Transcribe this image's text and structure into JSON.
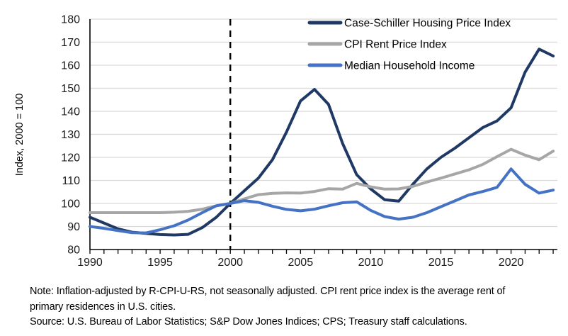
{
  "chart_data": {
    "type": "line",
    "title": "",
    "xlabel": "",
    "ylabel": "Index, 2000 = 100",
    "ylim": [
      80,
      180
    ],
    "ytick_step": 10,
    "x": [
      1990,
      1991,
      1992,
      1993,
      1994,
      1995,
      1996,
      1997,
      1998,
      1999,
      2000,
      2001,
      2002,
      2003,
      2004,
      2005,
      2006,
      2007,
      2008,
      2009,
      2010,
      2011,
      2012,
      2013,
      2014,
      2015,
      2016,
      2017,
      2018,
      2019,
      2020,
      2021,
      2022,
      2023
    ],
    "xticks_labeled": [
      1990,
      1995,
      2000,
      2005,
      2010,
      2015,
      2020
    ],
    "grid": "horizontal",
    "legend_position": "top-right",
    "reference_line_x": 2000,
    "series": [
      {
        "name": "Case-Schiller Housing Price Index",
        "color": "#1F3864",
        "values": [
          94,
          91.5,
          89,
          87.5,
          87,
          86.5,
          86.3,
          86.6,
          89.5,
          94,
          100,
          105.5,
          111,
          119,
          131,
          144.5,
          149.5,
          143,
          126,
          112.5,
          106.3,
          101.6,
          101,
          108.3,
          115,
          120,
          124,
          128.5,
          133,
          135.8,
          141.5,
          157,
          167,
          164
        ]
      },
      {
        "name": "CPI Rent Price Index",
        "color": "#A6A6A6",
        "values": [
          96,
          96,
          96,
          96,
          96,
          96,
          96.2,
          96.6,
          97.5,
          99,
          100,
          102,
          103.8,
          104.4,
          104.6,
          104.5,
          105.2,
          106.4,
          106.2,
          108.7,
          107.2,
          106.2,
          106.3,
          107.4,
          109.3,
          111,
          112.8,
          114.6,
          117,
          120.3,
          123.5,
          121,
          119,
          122.7
        ]
      },
      {
        "name": "Median Household Income",
        "color": "#4472C4",
        "values": [
          90,
          89.2,
          88.2,
          87.3,
          87.2,
          88.6,
          90.3,
          92.8,
          96,
          99,
          100,
          101.2,
          100.5,
          98.8,
          97.4,
          96.8,
          97.5,
          99,
          100.3,
          100.7,
          97,
          94.3,
          93.2,
          94,
          96,
          98.6,
          101.1,
          103.7,
          105.2,
          107,
          115,
          108.3,
          104.5,
          105.8
        ]
      }
    ]
  },
  "notes": {
    "note": "Note: Inflation-adjusted by R-CPI-U-RS, not seasonally adjusted. CPI rent price index is the average rent of primary residences in U.S. cities.",
    "source": "Source: U.S. Bureau of Labor Statistics; S&P Dow Jones Indices; CPS; Treasury staff calculations."
  },
  "colors": {
    "gridline": "#D9D9D9",
    "axis": "#000000",
    "tick_label": "#1A1A1A",
    "legend_text": "#000000",
    "reference_line": "#000000"
  }
}
